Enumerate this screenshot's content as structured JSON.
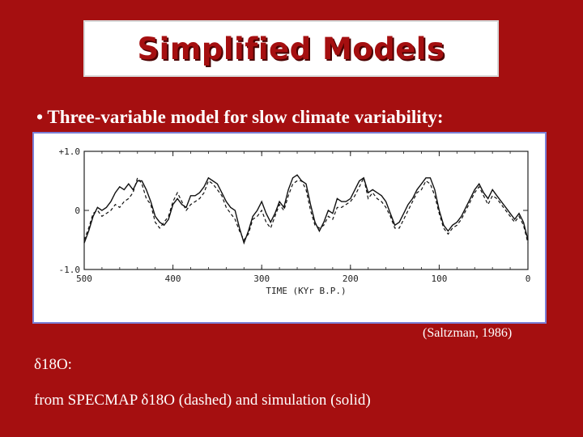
{
  "slide": {
    "title": "Simplified Models",
    "bullet": "• Three-variable model for slow climate variability:",
    "citation": "(Saltzman, 1986)",
    "delta_label": "δ18O:",
    "caption": "from SPECMAP δ18O (dashed) and simulation (solid)"
  },
  "colors": {
    "background": "#a50f10",
    "title_text": "#a50f10",
    "chart_frame": "#7b7fd6",
    "text": "#ffffff"
  },
  "chart_data": {
    "type": "line",
    "xlabel": "TIME (KYr B.P.)",
    "ylabel": "",
    "x_ticks": [
      "500",
      "400",
      "300",
      "200",
      "100",
      "0"
    ],
    "y_ticks": [
      "+1.0",
      "0",
      "-1.0"
    ],
    "xlim": [
      500,
      0
    ],
    "ylim": [
      -1.0,
      1.0
    ],
    "grid": false,
    "series": [
      {
        "style": "solid",
        "x": [
          500,
          495,
          490,
          485,
          480,
          475,
          470,
          465,
          460,
          455,
          450,
          445,
          440,
          435,
          430,
          425,
          420,
          415,
          410,
          405,
          400,
          395,
          390,
          385,
          380,
          375,
          370,
          365,
          360,
          355,
          350,
          345,
          340,
          335,
          330,
          325,
          320,
          315,
          310,
          305,
          300,
          295,
          290,
          285,
          280,
          275,
          270,
          265,
          260,
          255,
          250,
          245,
          240,
          235,
          230,
          225,
          220,
          215,
          210,
          205,
          200,
          195,
          190,
          185,
          180,
          175,
          170,
          165,
          160,
          155,
          150,
          145,
          140,
          135,
          130,
          125,
          120,
          115,
          110,
          105,
          100,
          95,
          90,
          85,
          80,
          75,
          70,
          65,
          60,
          55,
          50,
          45,
          40,
          35,
          30,
          25,
          20,
          15,
          10,
          5,
          0
        ],
        "y": [
          -0.55,
          -0.35,
          -0.1,
          0.05,
          0.0,
          0.05,
          0.15,
          0.3,
          0.4,
          0.35,
          0.45,
          0.35,
          0.5,
          0.5,
          0.35,
          0.15,
          -0.1,
          -0.2,
          -0.25,
          -0.15,
          0.1,
          0.2,
          0.1,
          0.05,
          0.25,
          0.25,
          0.3,
          0.4,
          0.55,
          0.5,
          0.45,
          0.3,
          0.15,
          0.05,
          0.0,
          -0.3,
          -0.55,
          -0.35,
          -0.1,
          0.0,
          0.15,
          -0.05,
          -0.2,
          -0.05,
          0.15,
          0.05,
          0.35,
          0.55,
          0.6,
          0.5,
          0.45,
          0.1,
          -0.2,
          -0.35,
          -0.2,
          0.0,
          -0.05,
          0.2,
          0.15,
          0.15,
          0.2,
          0.35,
          0.5,
          0.55,
          0.3,
          0.35,
          0.3,
          0.25,
          0.15,
          -0.05,
          -0.25,
          -0.2,
          -0.05,
          0.1,
          0.2,
          0.35,
          0.45,
          0.55,
          0.55,
          0.35,
          0.0,
          -0.25,
          -0.35,
          -0.25,
          -0.2,
          -0.1,
          0.05,
          0.2,
          0.35,
          0.45,
          0.3,
          0.2,
          0.35,
          0.25,
          0.15,
          0.05,
          -0.05,
          -0.15,
          -0.05,
          -0.2,
          -0.5
        ]
      },
      {
        "style": "dashed",
        "x": [
          500,
          495,
          490,
          485,
          480,
          475,
          470,
          465,
          460,
          455,
          450,
          445,
          440,
          435,
          430,
          425,
          420,
          415,
          410,
          405,
          400,
          395,
          390,
          385,
          380,
          375,
          370,
          365,
          360,
          355,
          350,
          345,
          340,
          335,
          330,
          325,
          320,
          315,
          310,
          305,
          300,
          295,
          290,
          285,
          280,
          275,
          270,
          265,
          260,
          255,
          250,
          245,
          240,
          235,
          230,
          225,
          220,
          215,
          210,
          205,
          200,
          195,
          190,
          185,
          180,
          175,
          170,
          165,
          160,
          155,
          150,
          145,
          140,
          135,
          130,
          125,
          120,
          115,
          110,
          105,
          100,
          95,
          90,
          85,
          80,
          75,
          70,
          65,
          60,
          55,
          50,
          45,
          40,
          35,
          30,
          25,
          20,
          15,
          10,
          5,
          0
        ],
        "y": [
          -0.5,
          -0.3,
          -0.05,
          0.0,
          -0.1,
          -0.05,
          0.0,
          0.1,
          0.05,
          0.15,
          0.2,
          0.3,
          0.55,
          0.45,
          0.2,
          0.1,
          -0.2,
          -0.3,
          -0.2,
          -0.1,
          0.15,
          0.3,
          0.15,
          0.0,
          0.1,
          0.15,
          0.2,
          0.3,
          0.5,
          0.45,
          0.35,
          0.25,
          0.05,
          -0.05,
          -0.15,
          -0.35,
          -0.5,
          -0.4,
          -0.15,
          -0.1,
          0.0,
          -0.2,
          -0.3,
          -0.1,
          0.1,
          0.0,
          0.25,
          0.45,
          0.5,
          0.5,
          0.35,
          0.0,
          -0.25,
          -0.3,
          -0.25,
          -0.1,
          -0.15,
          0.05,
          0.05,
          0.1,
          0.15,
          0.25,
          0.4,
          0.55,
          0.2,
          0.3,
          0.2,
          0.15,
          0.05,
          -0.1,
          -0.3,
          -0.3,
          -0.15,
          0.0,
          0.15,
          0.3,
          0.35,
          0.5,
          0.45,
          0.25,
          -0.05,
          -0.3,
          -0.4,
          -0.3,
          -0.25,
          -0.15,
          0.0,
          0.15,
          0.3,
          0.4,
          0.25,
          0.1,
          0.25,
          0.2,
          0.1,
          0.0,
          -0.1,
          -0.2,
          -0.1,
          -0.25,
          -0.55
        ]
      }
    ]
  }
}
